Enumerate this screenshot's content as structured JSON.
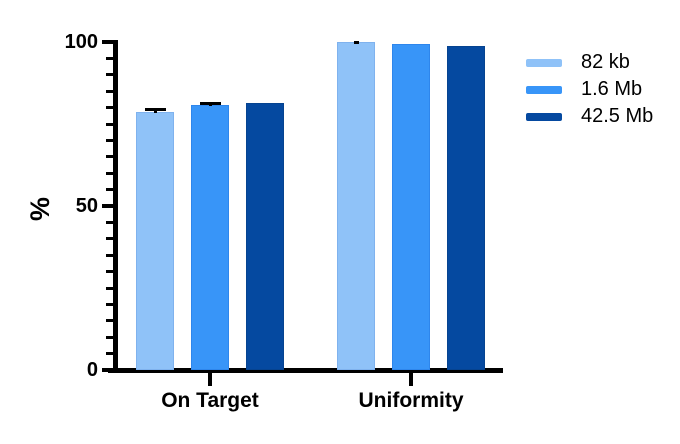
{
  "chart_data": {
    "type": "bar",
    "title": "",
    "ylabel": "%",
    "categories": [
      "On Target",
      "Uniformity"
    ],
    "series": [
      {
        "name": "82 kb",
        "color": "#8FC2F8",
        "border_color": "#7FB2EE",
        "values": [
          78.8,
          100
        ],
        "errors": [
          1.2,
          0.3
        ]
      },
      {
        "name": "1.6 Mb",
        "color": "#3895F8",
        "border_color": "#2E86EC",
        "values": [
          80.8,
          99.5
        ],
        "errors": [
          0.8,
          0
        ]
      },
      {
        "name": "42.5 Mb",
        "color": "#0549A0",
        "border_color": "#064390",
        "values": [
          81.5,
          98.8
        ],
        "errors": [
          0,
          0
        ]
      }
    ],
    "ylim": [
      0,
      100
    ],
    "yticks_major": [
      0,
      50,
      100
    ],
    "ytick_minor_step": 5,
    "legend_position": "right",
    "grid": false,
    "axis_color": "#000000",
    "error_bar_color": "#000000"
  }
}
